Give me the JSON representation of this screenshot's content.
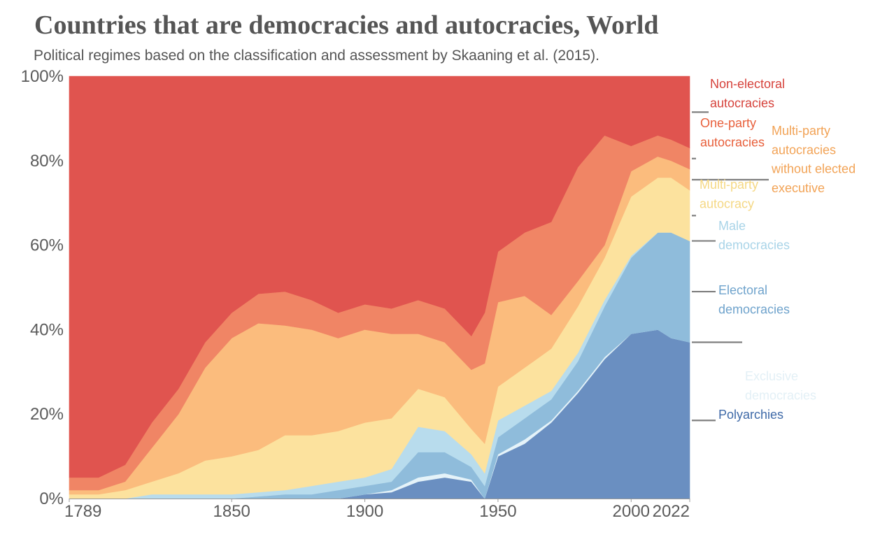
{
  "chart_data": {
    "type": "area",
    "stacked": true,
    "normalized": true,
    "title": "Countries that are democracies and autocracies, World",
    "subtitle": "Political regimes based on the classification and assessment by Skaaning et al. (2015).",
    "x": [
      1789,
      1800,
      1810,
      1820,
      1830,
      1840,
      1850,
      1860,
      1870,
      1880,
      1890,
      1900,
      1910,
      1920,
      1930,
      1940,
      1945,
      1950,
      1960,
      1970,
      1980,
      1990,
      2000,
      2010,
      2015,
      2022
    ],
    "x_ticks": [
      1789,
      1850,
      1900,
      1950,
      2000,
      2022
    ],
    "y_ticks": [
      "0%",
      "20%",
      "40%",
      "60%",
      "80%",
      "100%"
    ],
    "ylim": [
      0,
      100
    ],
    "legend_position": "right",
    "series": [
      {
        "name": "Polyarchies",
        "color": "#6a8fc1",
        "values": [
          0,
          0,
          0,
          0,
          0,
          0,
          0,
          0,
          0,
          0,
          0,
          1,
          1.5,
          4,
          5,
          4,
          0,
          10,
          13,
          18,
          25,
          33,
          39,
          40,
          38,
          37
        ]
      },
      {
        "name": "Exclusive democracies",
        "color": "#e5f3f9",
        "values": [
          0,
          0,
          0,
          0,
          0,
          0,
          0,
          0,
          0,
          0,
          0,
          0,
          0.5,
          1,
          1,
          0.5,
          0,
          0.5,
          1,
          0.5,
          0.5,
          0.5,
          0,
          0,
          0,
          0
        ]
      },
      {
        "name": "Electoral democracies",
        "color": "#8fbcdb",
        "values": [
          0,
          0,
          0,
          0,
          0,
          0,
          0,
          0.5,
          1,
          1,
          2,
          2,
          2,
          6,
          5,
          3,
          3,
          4,
          5,
          5,
          7,
          12,
          18,
          23,
          25,
          24
        ]
      },
      {
        "name": "Male democracies",
        "color": "#b8dced",
        "values": [
          0,
          0,
          0,
          1,
          1,
          1,
          1,
          1,
          1,
          2,
          2,
          2,
          3,
          6,
          5,
          3,
          3,
          4,
          3,
          2,
          2,
          1.5,
          0.5,
          0,
          0,
          0
        ]
      },
      {
        "name": "Multi-party autocracy",
        "color": "#fce29e",
        "values": [
          1,
          1,
          2,
          3,
          5,
          8,
          9,
          10,
          13,
          12,
          12,
          13,
          12,
          9,
          8,
          6,
          7,
          8,
          9,
          10,
          11,
          10,
          14,
          13,
          13,
          12
        ]
      },
      {
        "name": "Multi-party autocracies without elected executive",
        "color": "#fbbc7d",
        "values": [
          1,
          1,
          2,
          8,
          14,
          22,
          28,
          30,
          26,
          25,
          22,
          22,
          20,
          13,
          13,
          14,
          19,
          20,
          17,
          8,
          6,
          3,
          6,
          5,
          4,
          5
        ]
      },
      {
        "name": "One-party autocracies",
        "color": "#f08565",
        "values": [
          3,
          3,
          4,
          6,
          6,
          6,
          6,
          7,
          8,
          7,
          6,
          6,
          6,
          8,
          8,
          8,
          12,
          12,
          15,
          22,
          27,
          26,
          6,
          5,
          5,
          5
        ]
      },
      {
        "name": "Non-electoral autocracies",
        "color": "#e0544f",
        "values": [
          95,
          95,
          92,
          82,
          74,
          63,
          56,
          51.5,
          51,
          53,
          56,
          54,
          55,
          53,
          55,
          61.5,
          56,
          41.5,
          37,
          34.5,
          21.5,
          14,
          16.5,
          14,
          15,
          17
        ]
      }
    ],
    "legend_labels": [
      {
        "series": "Non-electoral autocracies",
        "lines": [
          "Non-electoral",
          "autocracies"
        ],
        "color": "#d6423b"
      },
      {
        "series": "One-party autocracies",
        "lines": [
          "One-party",
          "autocracies"
        ],
        "color": "#e8603c"
      },
      {
        "series": "Multi-party autocracies without elected executive",
        "lines": [
          "Multi-party",
          "autocracies",
          "without elected",
          "executive"
        ],
        "color": "#f2a356"
      },
      {
        "series": "Multi-party autocracy",
        "lines": [
          "Multi-party",
          "autocracy"
        ],
        "color": "#f5d884"
      },
      {
        "series": "Male democracies",
        "lines": [
          "Male",
          "democracies"
        ],
        "color": "#a9d4e8"
      },
      {
        "series": "Electoral democracies",
        "lines": [
          "Electoral",
          "democracies"
        ],
        "color": "#6fa3cc"
      },
      {
        "series": "Exclusive democracies",
        "lines": [
          "Exclusive",
          "democracies"
        ],
        "color": "#e3f0f6"
      },
      {
        "series": "Polyarchies",
        "lines": [
          "Polyarchies"
        ],
        "color": "#3f6aa8"
      }
    ]
  }
}
